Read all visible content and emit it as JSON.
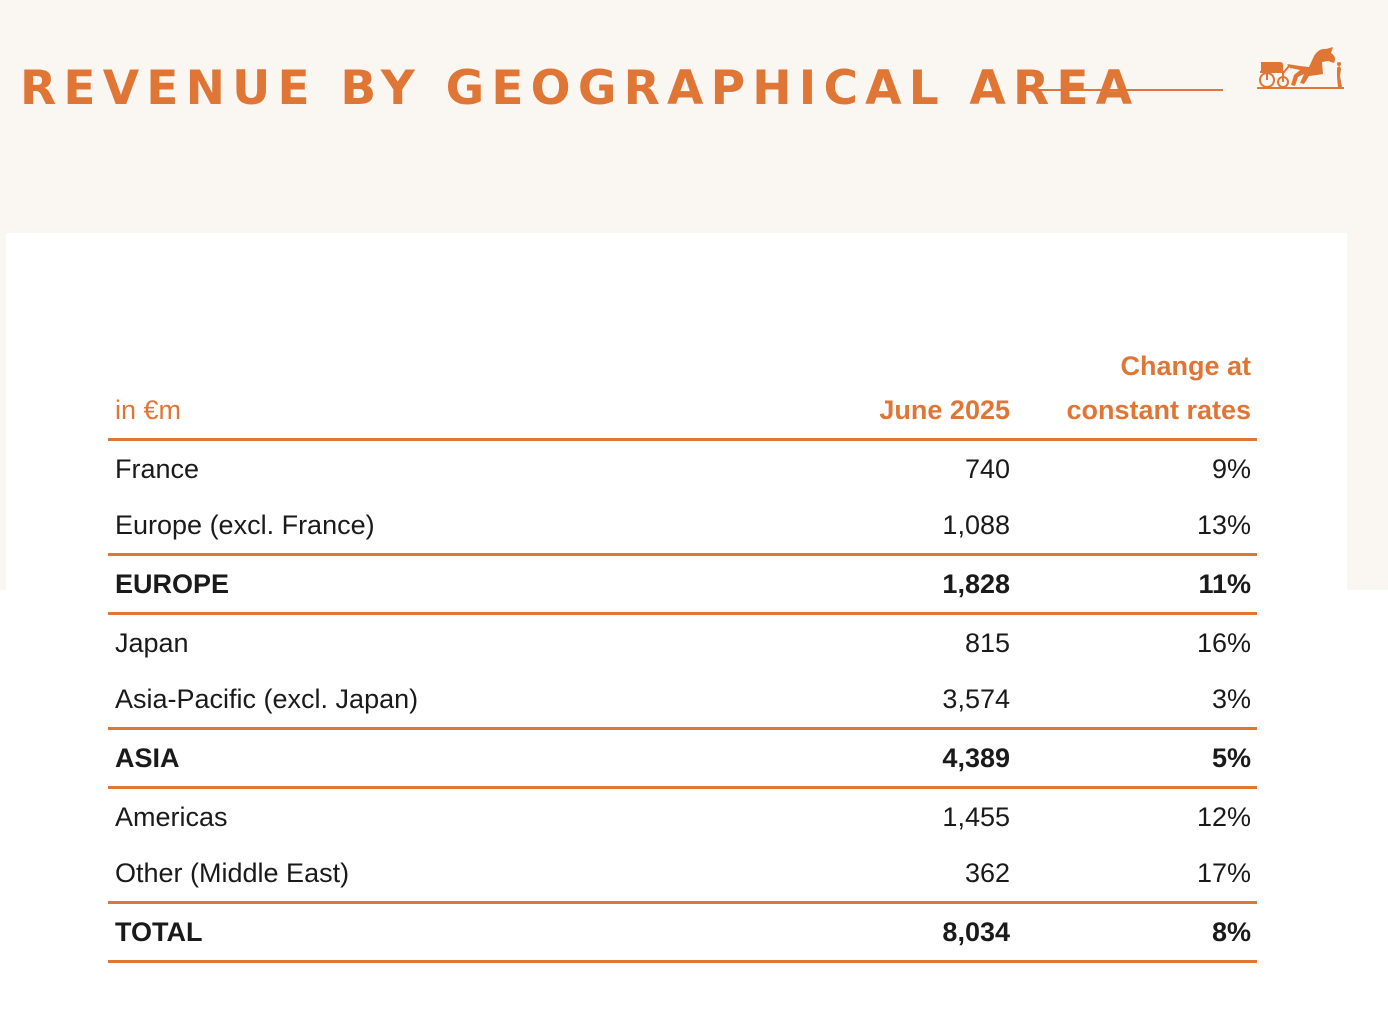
{
  "colors": {
    "accent": "#e07635",
    "background": "#faf7f3",
    "panel": "#ffffff",
    "text": "#1a1a1a"
  },
  "header": {
    "title": "REVENUE BY GEOGRAPHICAL AREA",
    "logo_icon": "horse-carriage-logo-icon"
  },
  "table": {
    "columns": {
      "unit": "in €m",
      "june_2025": "June 2025",
      "change_line1": "Change at",
      "change_line2": "constant rates"
    },
    "rows": [
      {
        "label": "France",
        "value": "740",
        "change": "9%",
        "bold": false,
        "rule": false
      },
      {
        "label": "Europe (excl. France)",
        "value": "1,088",
        "change": "13%",
        "bold": false,
        "rule": true
      },
      {
        "label": "EUROPE",
        "value": "1,828",
        "change": "11%",
        "bold": true,
        "rule": true
      },
      {
        "label": "Japan",
        "value": "815",
        "change": "16%",
        "bold": false,
        "rule": false
      },
      {
        "label": "Asia-Pacific (excl. Japan)",
        "value": "3,574",
        "change": "3%",
        "bold": false,
        "rule": true
      },
      {
        "label": "ASIA",
        "value": "4,389",
        "change": "5%",
        "bold": true,
        "rule": true
      },
      {
        "label": "Americas",
        "value": "1,455",
        "change": "12%",
        "bold": false,
        "rule": false
      },
      {
        "label": "Other (Middle East)",
        "value": "362",
        "change": "17%",
        "bold": false,
        "rule": true
      },
      {
        "label": "TOTAL",
        "value": "8,034",
        "change": "8%",
        "bold": true,
        "rule": true
      }
    ]
  }
}
